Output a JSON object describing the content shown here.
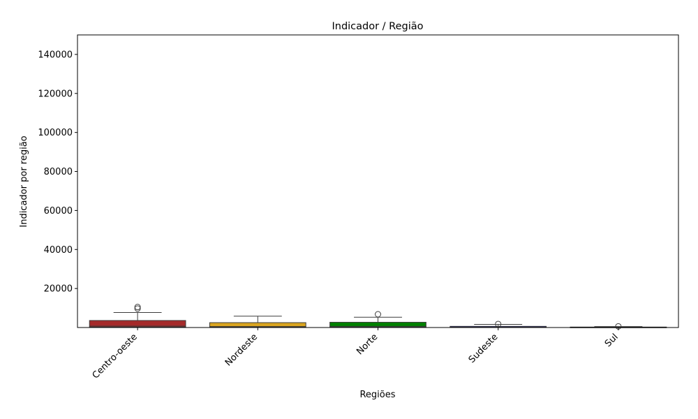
{
  "chart_data": {
    "type": "box",
    "title": "Indicador / Região",
    "xlabel": "Regiões",
    "ylabel": "Indicador por região",
    "ylim": [
      0,
      150000
    ],
    "yticks": [
      20000,
      40000,
      60000,
      80000,
      100000,
      120000,
      140000
    ],
    "ytick_labels": [
      "20000",
      "40000",
      "60000",
      "80000",
      "100000",
      "120000",
      "140000"
    ],
    "grid": false,
    "categories": [
      "Centro-oeste",
      "Nordeste",
      "Norte",
      "Sudeste",
      "Sul"
    ],
    "colors": [
      "#a52a2a",
      "#daa520",
      "#008000",
      "#00008b",
      "#cd853f"
    ],
    "boxes": [
      {
        "category": "Centro-oeste",
        "whisker_low": 0,
        "q1": 200,
        "median": 700,
        "q3": 3600,
        "whisker_high": 7700,
        "outliers": [
          9700,
          10500
        ]
      },
      {
        "category": "Nordeste",
        "whisker_low": 0,
        "q1": 200,
        "median": 500,
        "q3": 2500,
        "whisker_high": 5800,
        "outliers": []
      },
      {
        "category": "Norte",
        "whisker_low": 0,
        "q1": 200,
        "median": 600,
        "q3": 2700,
        "whisker_high": 5300,
        "outliers": [
          6800
        ]
      },
      {
        "category": "Sudeste",
        "whisker_low": 0,
        "q1": 80,
        "median": 150,
        "q3": 600,
        "whisker_high": 1600,
        "outliers": [
          1800
        ]
      },
      {
        "category": "Sul",
        "whisker_low": 0,
        "q1": 40,
        "median": 100,
        "q3": 250,
        "whisker_high": 500,
        "outliers": [
          600
        ]
      }
    ]
  }
}
